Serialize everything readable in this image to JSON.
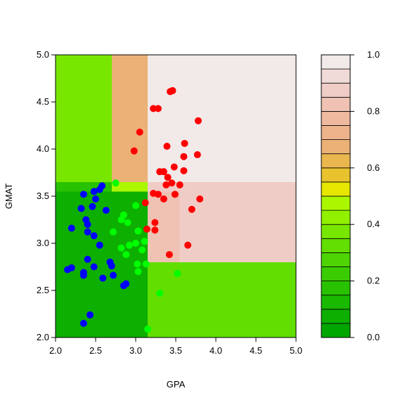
{
  "chart_data": {
    "type": "scatter",
    "title": "",
    "xlabel": "GPA",
    "ylabel": "GMAT",
    "xlim": [
      2.0,
      5.0
    ],
    "ylim": [
      2.0,
      5.0
    ],
    "xticks": [
      "2.0",
      "2.5",
      "3.0",
      "3.5",
      "4.0",
      "4.5",
      "5.0"
    ],
    "yticks": [
      "2.0",
      "2.5",
      "3.0",
      "3.5",
      "4.0",
      "4.5",
      "5.0"
    ],
    "grid": false,
    "background": {
      "type": "heatmap",
      "description_values": "probability surface over GPA x GMAT",
      "regions": [
        {
          "x": [
            2.0,
            2.7
          ],
          "y": [
            3.65,
            5.0
          ],
          "value": 0.35
        },
        {
          "x": [
            2.7,
            3.15
          ],
          "y": [
            3.65,
            5.0
          ],
          "value": 0.65
        },
        {
          "x": [
            3.15,
            5.0
          ],
          "y": [
            3.65,
            5.0
          ],
          "value": 0.97
        },
        {
          "x": [
            2.0,
            2.7
          ],
          "y": [
            3.55,
            3.65
          ],
          "value": 0.18
        },
        {
          "x": [
            2.7,
            3.15
          ],
          "y": [
            3.55,
            3.65
          ],
          "value": 0.45
        },
        {
          "x": [
            3.15,
            5.0
          ],
          "y": [
            3.55,
            3.65
          ],
          "value": 0.88
        },
        {
          "x": [
            2.0,
            3.15
          ],
          "y": [
            2.0,
            3.55
          ],
          "value": 0.05
        },
        {
          "x": [
            3.15,
            3.55
          ],
          "y": [
            2.8,
            3.55
          ],
          "value": 0.82
        },
        {
          "x": [
            3.55,
            5.0
          ],
          "y": [
            2.8,
            3.55
          ],
          "value": 0.88
        },
        {
          "x": [
            3.15,
            5.0
          ],
          "y": [
            2.0,
            2.8
          ],
          "value": 0.3
        }
      ]
    },
    "colorbar": {
      "ticks": [
        "0.0",
        "0.2",
        "0.4",
        "0.6",
        "0.8",
        "1.0"
      ],
      "levels": [
        0.0,
        0.05,
        0.1,
        0.15,
        0.2,
        0.25,
        0.3,
        0.35,
        0.4,
        0.45,
        0.5,
        0.55,
        0.6,
        0.65,
        0.7,
        0.75,
        0.8,
        0.85,
        0.9,
        0.95,
        1.0
      ],
      "colors": [
        "#00A600",
        "#0DAF00",
        "#19B900",
        "#28C200",
        "#3ACB00",
        "#4ED400",
        "#62DE00",
        "#78E700",
        "#90F000",
        "#AAF700",
        "#E6E600",
        "#E8C32E",
        "#EAB64E",
        "#ECB176",
        "#EDB38B",
        "#EEB99F",
        "#EFC2B3",
        "#F0CCC6",
        "#F1DBD8",
        "#F2E9E9"
      ]
    },
    "series": [
      {
        "color": "#FF0000",
        "points": [
          [
            3.43,
            4.61
          ],
          [
            3.46,
            4.62
          ],
          [
            3.22,
            4.43
          ],
          [
            3.28,
            4.43
          ],
          [
            3.78,
            4.3
          ],
          [
            3.05,
            4.18
          ],
          [
            3.61,
            4.06
          ],
          [
            3.39,
            4.03
          ],
          [
            2.98,
            3.98
          ],
          [
            3.77,
            3.94
          ],
          [
            3.6,
            3.92
          ],
          [
            3.48,
            3.81
          ],
          [
            3.6,
            3.77
          ],
          [
            3.3,
            3.76
          ],
          [
            3.35,
            3.76
          ],
          [
            3.4,
            3.7
          ],
          [
            3.45,
            3.64
          ],
          [
            3.38,
            3.62
          ],
          [
            3.55,
            3.62
          ],
          [
            3.22,
            3.53
          ],
          [
            3.28,
            3.52
          ],
          [
            3.49,
            3.52
          ],
          [
            3.35,
            3.47
          ],
          [
            3.8,
            3.47
          ],
          [
            3.12,
            3.43
          ],
          [
            3.7,
            3.36
          ],
          [
            3.24,
            3.22
          ],
          [
            3.14,
            3.15
          ],
          [
            3.24,
            3.14
          ],
          [
            3.65,
            2.98
          ],
          [
            3.42,
            2.88
          ]
        ]
      },
      {
        "color": "#00FF00",
        "points": [
          [
            2.75,
            3.64
          ],
          [
            3.0,
            3.4
          ],
          [
            2.85,
            3.3
          ],
          [
            2.82,
            3.25
          ],
          [
            2.9,
            3.22
          ],
          [
            2.72,
            3.12
          ],
          [
            3.03,
            3.13
          ],
          [
            3.11,
            3.02
          ],
          [
            3.0,
            3.0
          ],
          [
            2.92,
            2.98
          ],
          [
            2.82,
            2.95
          ],
          [
            3.08,
            2.93
          ],
          [
            2.88,
            2.88
          ],
          [
            3.02,
            2.78
          ],
          [
            3.13,
            2.78
          ],
          [
            3.03,
            2.7
          ],
          [
            3.52,
            2.68
          ],
          [
            3.3,
            2.47
          ],
          [
            3.15,
            2.09
          ]
        ]
      },
      {
        "color": "#0000FF",
        "points": [
          [
            2.58,
            3.61
          ],
          [
            2.55,
            3.57
          ],
          [
            2.48,
            3.55
          ],
          [
            2.35,
            3.52
          ],
          [
            2.5,
            3.47
          ],
          [
            2.32,
            3.37
          ],
          [
            2.46,
            3.39
          ],
          [
            2.63,
            3.35
          ],
          [
            2.38,
            3.25
          ],
          [
            2.4,
            3.2
          ],
          [
            2.2,
            3.16
          ],
          [
            2.4,
            3.12
          ],
          [
            2.48,
            3.08
          ],
          [
            2.55,
            2.98
          ],
          [
            2.4,
            2.83
          ],
          [
            2.68,
            2.8
          ],
          [
            2.7,
            2.76
          ],
          [
            2.2,
            2.74
          ],
          [
            2.48,
            2.75
          ],
          [
            2.15,
            2.72
          ],
          [
            2.35,
            2.69
          ],
          [
            2.35,
            2.66
          ],
          [
            2.72,
            2.66
          ],
          [
            2.59,
            2.63
          ],
          [
            2.88,
            2.57
          ],
          [
            2.85,
            2.55
          ],
          [
            2.43,
            2.24
          ],
          [
            2.35,
            2.15
          ]
        ]
      }
    ]
  }
}
